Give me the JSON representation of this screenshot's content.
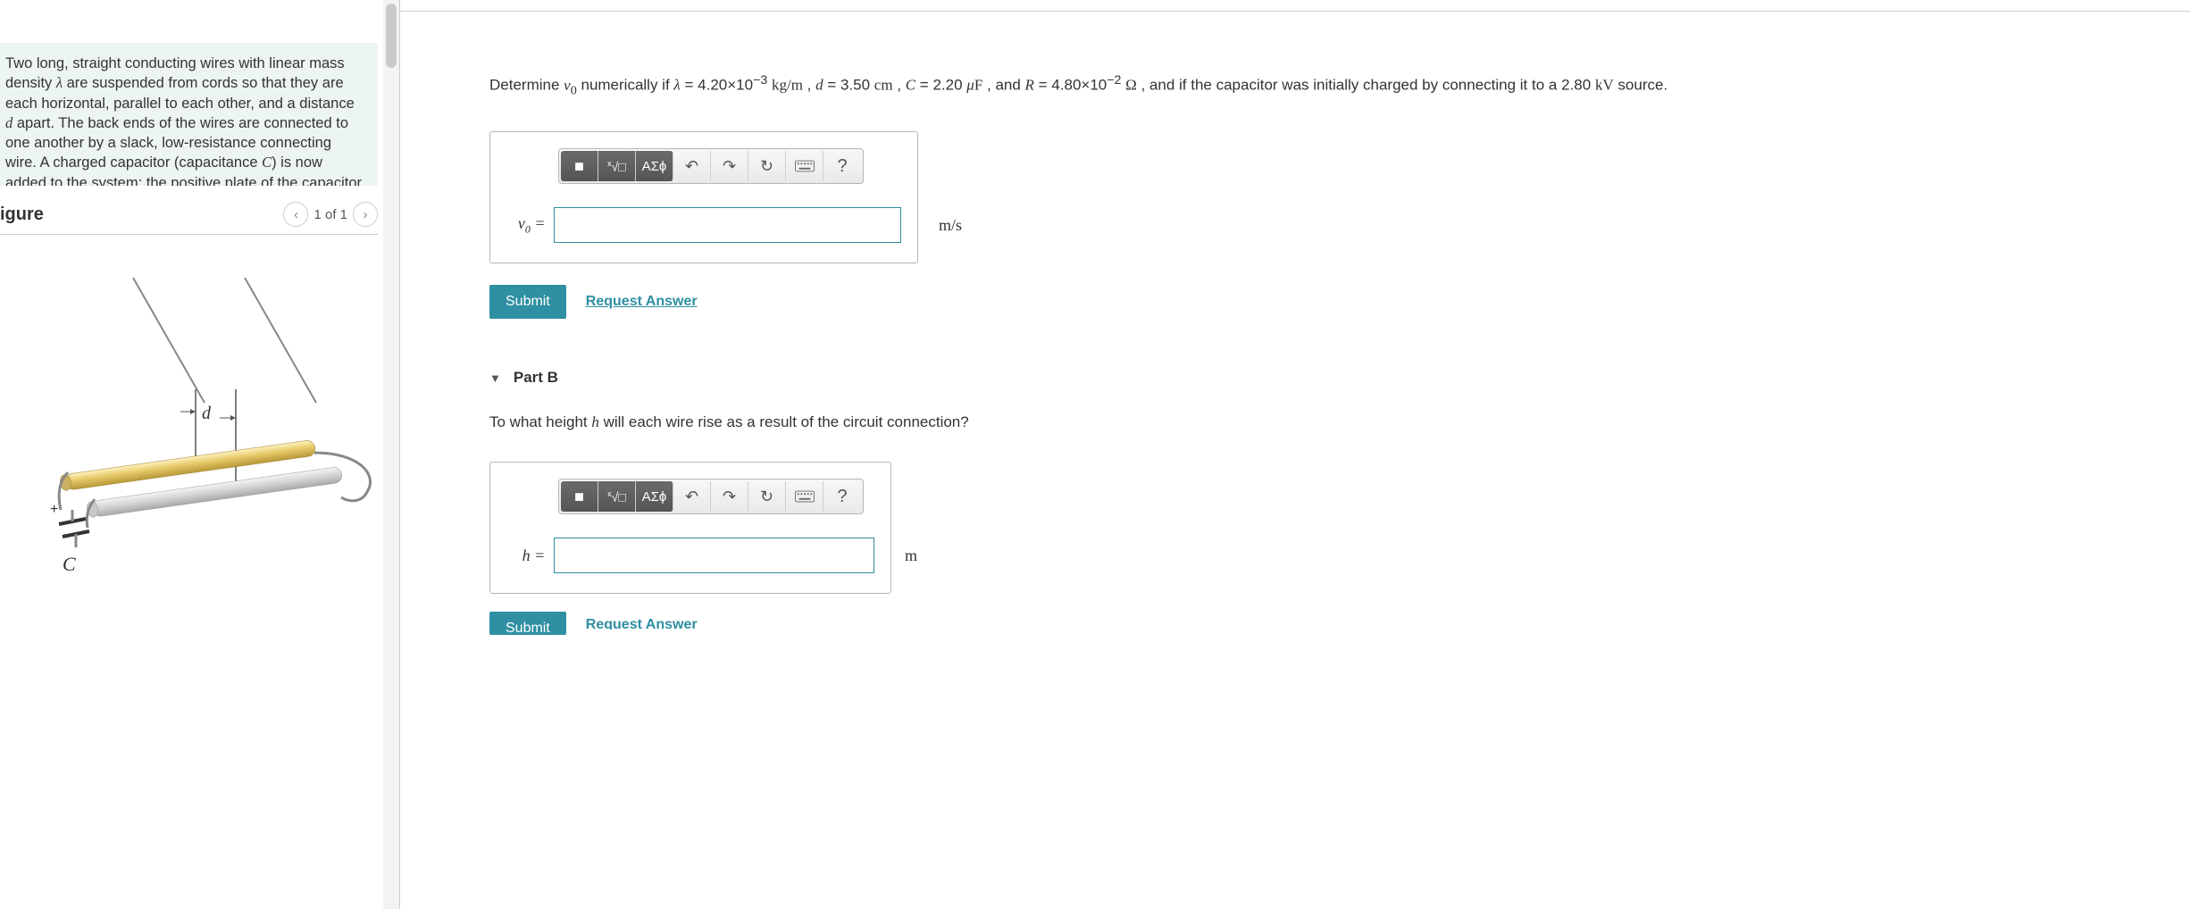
{
  "problem": {
    "text_html": "Two long, straight conducting wires with linear mass density <span class='math'>λ</span> are suspended from cords so that they are each horizontal, parallel to each other, and a distance <span class='math'>d</span> apart. The back ends of the wires are connected to one another by a slack, low-resistance connecting wire. A charged capacitor (capacitance <span class='math'>C</span>) is now added to the system; the positive plate of the capacitor (initial charge +<span class='math'>Q</span>) is connected to the front end of"
  },
  "figure": {
    "title": "igure",
    "nav_label": "1 of 1",
    "label_d": "d",
    "label_C": "C",
    "label_plus": "+"
  },
  "partA": {
    "question_html": "Determine <span class='serif'><i>v</i><sub>0</sub></span> numerically if <span class='serif'><i>λ</i></span> = 4.20×10<sup>−3</sup> <span class='serif'>kg/m</span> , <span class='serif'><i>d</i></span> = 3.50 <span class='serif'>cm</span> , <span class='serif'><i>C</i></span> = 2.20 <span class='serif'><i>μ</i>F</span> , and <span class='serif'><i>R</i></span> = 4.80×10<sup>−2</sup> <span class='serif'>Ω</span> , and if the capacitor was initially charged by connecting it to a 2.80 <span class='serif'>kV</span> source.",
    "lhs_html": "<i>v</i><sub>0</sub> =",
    "unit_html": "m/s",
    "submit_label": "Submit",
    "request_label": "Request Answer"
  },
  "partB": {
    "header": "Part B",
    "question_html": "To what height <span class='serif'><i>h</i></span> will each wire rise as a result of the circuit connection?",
    "lhs_html": "<i>h</i> =",
    "unit_html": "m",
    "submit_label": "Submit",
    "request_label": "Request Answer"
  },
  "toolbar": {
    "templates_icon": "■",
    "sqrt_icon_html": "<span class='icon-sqrt'><sup style='font-size:9px'>x</sup>√□</span>",
    "greek_label": "ΑΣϕ",
    "undo_icon": "↶",
    "redo_icon": "↷",
    "reset_icon": "↻",
    "help_icon": "?"
  },
  "colors": {
    "accent": "#2f8fa3",
    "panel_bg": "#ecf5ef",
    "border": "#b6b6b6"
  }
}
